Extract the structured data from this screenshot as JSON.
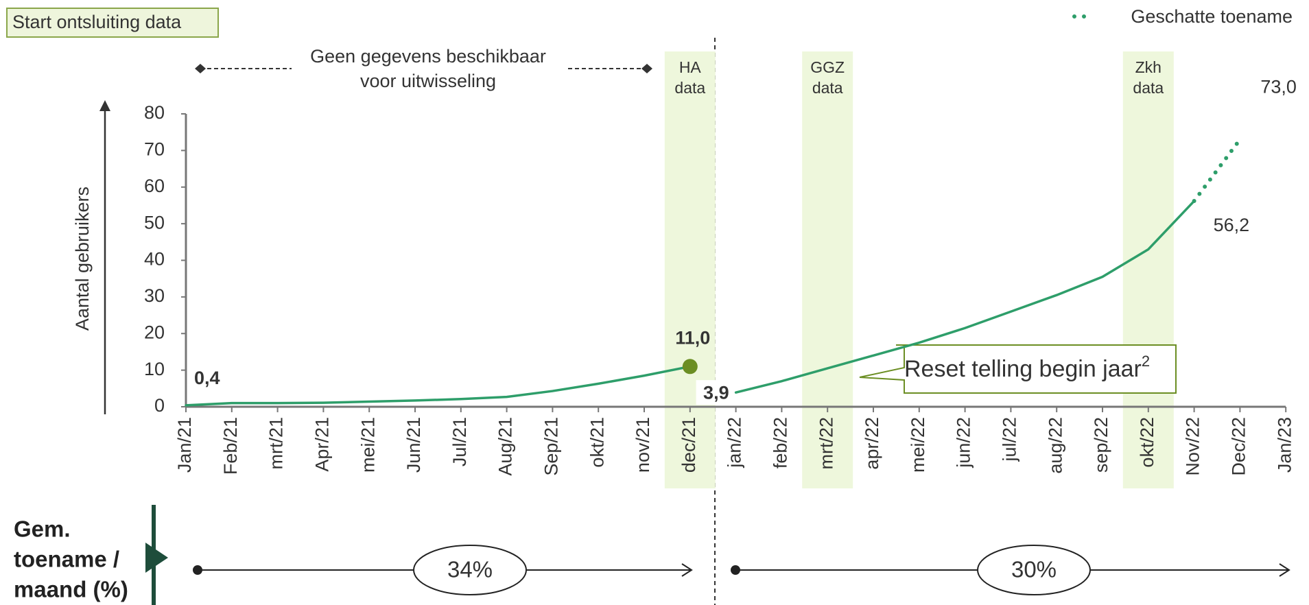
{
  "chart_data": {
    "type": "line",
    "ylabel": "Aantal gebruikers",
    "categories": [
      "Jan/21",
      "Feb/21",
      "mrt/21",
      "Apr/21",
      "mei/21",
      "Jun/21",
      "Jul/21",
      "Aug/21",
      "Sep/21",
      "okt/21",
      "nov/21",
      "dec/21",
      "jan/22",
      "feb/22",
      "mrt/22",
      "apr/22",
      "mei/22",
      "jun/22",
      "jul/22",
      "aug/22",
      "sep/22",
      "okt/22",
      "Nov/22",
      "Dec/22",
      "Jan/23"
    ],
    "series": [
      {
        "color": "#2e9e6a",
        "style": "solid",
        "values": [
          0.4,
          1.0,
          1.0,
          1.1,
          1.4,
          1.7,
          2.1,
          2.7,
          4.3,
          6.3,
          8.5,
          11.0,
          null,
          null,
          null,
          null,
          null,
          null,
          null,
          null,
          null,
          null,
          null,
          null,
          null
        ],
        "value_labels": [
          "0,4",
          null,
          null,
          null,
          null,
          null,
          null,
          null,
          null,
          null,
          null,
          "11,0",
          null,
          null,
          null,
          null,
          null,
          null,
          null,
          null,
          null,
          null,
          null,
          null,
          null
        ]
      },
      {
        "color": "#2e9e6a",
        "style": "solid",
        "values": [
          null,
          null,
          null,
          null,
          null,
          null,
          null,
          null,
          null,
          null,
          null,
          null,
          3.9,
          7.0,
          10.5,
          14.0,
          17.5,
          21.5,
          26.0,
          30.5,
          35.5,
          43.0,
          56.2,
          null,
          null
        ],
        "value_labels": [
          null,
          null,
          null,
          null,
          null,
          null,
          null,
          null,
          null,
          null,
          null,
          null,
          "3,9",
          null,
          null,
          null,
          null,
          null,
          null,
          null,
          null,
          null,
          null,
          null,
          null
        ]
      },
      {
        "name": "Geschatte toename",
        "color": "#2e9e6a",
        "style": "dotted",
        "values": [
          null,
          null,
          null,
          null,
          null,
          null,
          null,
          null,
          null,
          null,
          null,
          null,
          null,
          null,
          null,
          null,
          null,
          null,
          null,
          null,
          null,
          null,
          56.2,
          73.0,
          null
        ],
        "value_labels": [
          null,
          null,
          null,
          null,
          null,
          null,
          null,
          null,
          null,
          null,
          null,
          null,
          null,
          null,
          null,
          null,
          null,
          null,
          null,
          null,
          null,
          null,
          "56,2",
          "73,0",
          null
        ]
      }
    ],
    "ylim": [
      0,
      80
    ],
    "yticks": [
      0,
      10,
      20,
      30,
      40,
      50,
      60,
      70,
      80
    ],
    "legend": "top-right",
    "bands": [
      {
        "category": "dec/21",
        "label": [
          "HA",
          "data"
        ]
      },
      {
        "category": "mrt/22",
        "label": [
          "GGZ",
          "data"
        ]
      },
      {
        "category": "okt/22",
        "label": [
          "Zkh",
          "data"
        ]
      }
    ],
    "start_label": "Start ontsluiting data",
    "no_data_note": [
      "Geen gegevens beschikbaar",
      "voor uitwisseling"
    ],
    "reset_note": "Reset telling begin jaar",
    "reset_note_sup": "2",
    "growth_label": [
      "Gem.",
      "toename /",
      "maand (%)"
    ],
    "growth": [
      {
        "value": 34,
        "label": "34%"
      },
      {
        "value": 30,
        "label": "30%"
      }
    ]
  }
}
